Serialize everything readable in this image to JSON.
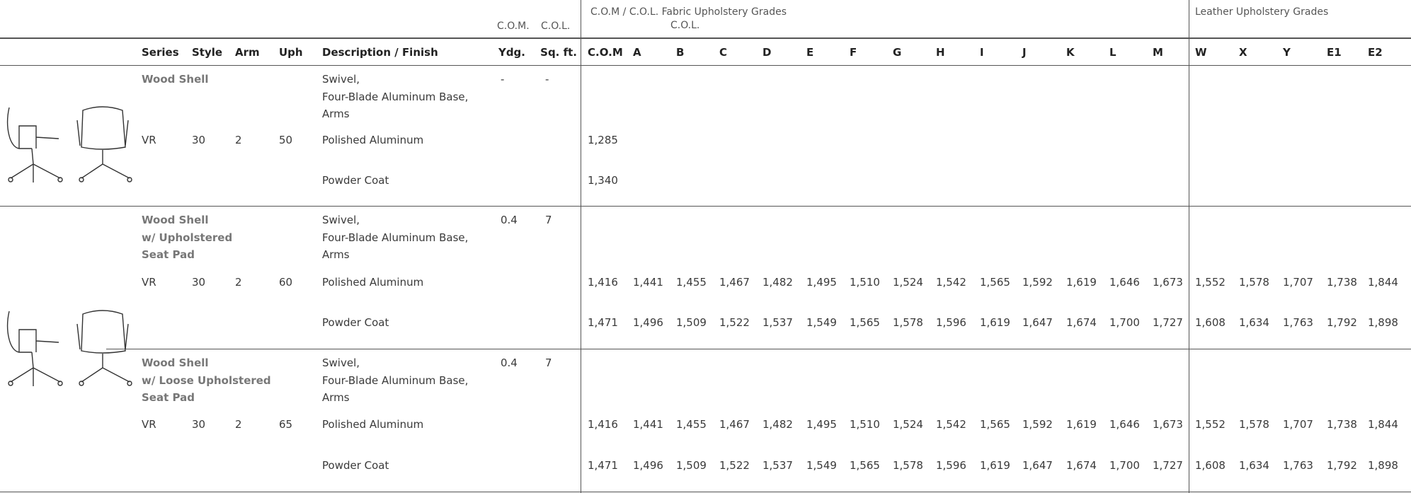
{
  "header": {
    "com_col_labels": [
      "C.O.M.",
      "C.O.L."
    ],
    "fabric_group": "C.O.M / C.O.L. Fabric Upholstery Grades",
    "fabric_group_sub": "C.O.L.",
    "leather_group": "Leather Upholstery Grades"
  },
  "columns": [
    "Series",
    "Style",
    "Arm",
    "Uph",
    "Description / Finish",
    "Ydg.",
    "Sq. ft.",
    "C.O.M",
    "A",
    "B",
    "C",
    "D",
    "E",
    "F",
    "G",
    "H",
    "I",
    "J",
    "K",
    "L",
    "M",
    "W",
    "X",
    "Y",
    "E1",
    "E2"
  ],
  "sections": [
    {
      "name": [
        "Wood Shell"
      ],
      "description": [
        "Swivel,",
        "Four-Blade Aluminum Base,",
        "Arms"
      ],
      "ydg": "-",
      "sqft": "-",
      "rows": [
        {
          "series": "VR",
          "style": "30",
          "arm": "2",
          "uph": "50",
          "finish": "Polished Aluminum",
          "prices": [
            "1,285"
          ]
        },
        {
          "finish": "Powder Coat",
          "prices": [
            "1,340"
          ]
        }
      ]
    },
    {
      "name": [
        "Wood Shell",
        "w/ Upholstered",
        "Seat Pad"
      ],
      "description": [
        "Swivel,",
        "Four-Blade Aluminum Base,",
        "Arms"
      ],
      "ydg": "0.4",
      "sqft": "7",
      "rows": [
        {
          "series": "VR",
          "style": "30",
          "arm": "2",
          "uph": "60",
          "finish": "Polished Aluminum",
          "prices": [
            "1,416",
            "1,441",
            "1,455",
            "1,467",
            "1,482",
            "1,495",
            "1,510",
            "1,524",
            "1,542",
            "1,565",
            "1,592",
            "1,619",
            "1,646",
            "1,673",
            "1,552",
            "1,578",
            "1,707",
            "1,738",
            "1,844"
          ]
        },
        {
          "finish": "Powder Coat",
          "prices": [
            "1,471",
            "1,496",
            "1,509",
            "1,522",
            "1,537",
            "1,549",
            "1,565",
            "1,578",
            "1,596",
            "1,619",
            "1,647",
            "1,674",
            "1,700",
            "1,727",
            "1,608",
            "1,634",
            "1,763",
            "1,792",
            "1,898"
          ]
        }
      ]
    },
    {
      "name": [
        "Wood Shell",
        "w/ Loose Upholstered",
        "Seat Pad"
      ],
      "description": [
        "Swivel,",
        "Four-Blade Aluminum Base,",
        "Arms"
      ],
      "ydg": "0.4",
      "sqft": "7",
      "rows": [
        {
          "series": "VR",
          "style": "30",
          "arm": "2",
          "uph": "65",
          "finish": "Polished Aluminum",
          "prices": [
            "1,416",
            "1,441",
            "1,455",
            "1,467",
            "1,482",
            "1,495",
            "1,510",
            "1,524",
            "1,542",
            "1,565",
            "1,592",
            "1,619",
            "1,646",
            "1,673",
            "1,552",
            "1,578",
            "1,707",
            "1,738",
            "1,844"
          ]
        },
        {
          "finish": "Powder Coat",
          "prices": [
            "1,471",
            "1,496",
            "1,509",
            "1,522",
            "1,537",
            "1,549",
            "1,565",
            "1,578",
            "1,596",
            "1,619",
            "1,647",
            "1,674",
            "1,700",
            "1,727",
            "1,608",
            "1,634",
            "1,763",
            "1,792",
            "1,898"
          ]
        }
      ]
    }
  ]
}
